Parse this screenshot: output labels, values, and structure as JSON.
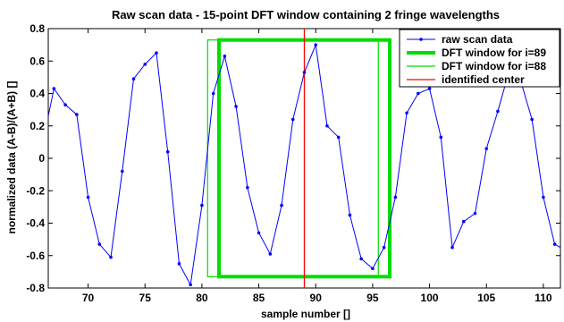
{
  "chart_data": {
    "type": "line",
    "title": "Raw scan data - 15-point DFT window containing 2 fringe wavelengths",
    "xlabel": "sample number []",
    "ylabel": "normalized data (A-B)/(A+B) []",
    "xlim": [
      66.5,
      111.5
    ],
    "ylim": [
      -0.8,
      0.8
    ],
    "xticks": [
      70,
      75,
      80,
      85,
      90,
      95,
      100,
      105,
      110
    ],
    "yticks": [
      -0.8,
      -0.6,
      -0.4,
      -0.2,
      0,
      0.2,
      0.4,
      0.6,
      0.8
    ],
    "xtick_labels": [
      "70",
      "75",
      "80",
      "85",
      "90",
      "95",
      "100",
      "105",
      "110"
    ],
    "ytick_labels": [
      "-0.8",
      "-0.6",
      "-0.4",
      "-0.2",
      "0",
      "0.2",
      "0.4",
      "0.6",
      "0.8"
    ],
    "series": [
      {
        "name": "raw scan data",
        "color": "#0000ff",
        "marker": "dot",
        "x": [
          66.5,
          67,
          68,
          69,
          70,
          71,
          72,
          73,
          74,
          75,
          76,
          77,
          78,
          79,
          80,
          81,
          82,
          83,
          84,
          85,
          86,
          87,
          88,
          89,
          90,
          91,
          92,
          93,
          94,
          95,
          96,
          97,
          98,
          99,
          100,
          101,
          102,
          103,
          104,
          105,
          106,
          107,
          108,
          109,
          110,
          111,
          111.5
        ],
        "y": [
          0.26,
          0.43,
          0.33,
          0.27,
          -0.24,
          -0.53,
          -0.61,
          -0.08,
          0.49,
          0.58,
          0.65,
          0.04,
          -0.65,
          -0.78,
          -0.29,
          0.4,
          0.63,
          0.32,
          -0.18,
          -0.46,
          -0.59,
          -0.29,
          0.24,
          0.53,
          0.7,
          0.2,
          0.13,
          -0.35,
          -0.62,
          -0.68,
          -0.55,
          -0.24,
          0.28,
          0.4,
          0.43,
          0.13,
          -0.55,
          -0.39,
          -0.34,
          0.06,
          0.29,
          0.54,
          0.48,
          0.24,
          -0.24,
          -0.53,
          -0.55
        ]
      }
    ],
    "windows": [
      {
        "name": "DFT window for i=89",
        "color": "#00dd00",
        "x_range": [
          81.5,
          96.5
        ],
        "y_range": [
          -0.73,
          0.73
        ],
        "width": "thick"
      },
      {
        "name": "DFT window for i=88",
        "color": "#00dd00",
        "x_range": [
          80.5,
          95.5
        ],
        "y_range": [
          -0.73,
          0.73
        ],
        "width": "thin"
      }
    ],
    "center_line": {
      "name": "identified center",
      "color": "#ff0000",
      "x": 89
    },
    "legend": {
      "placement": "top-right",
      "entries": [
        "raw scan data",
        "DFT window for i=89",
        "DFT window for i=88",
        "identified center"
      ]
    },
    "grid": false
  }
}
